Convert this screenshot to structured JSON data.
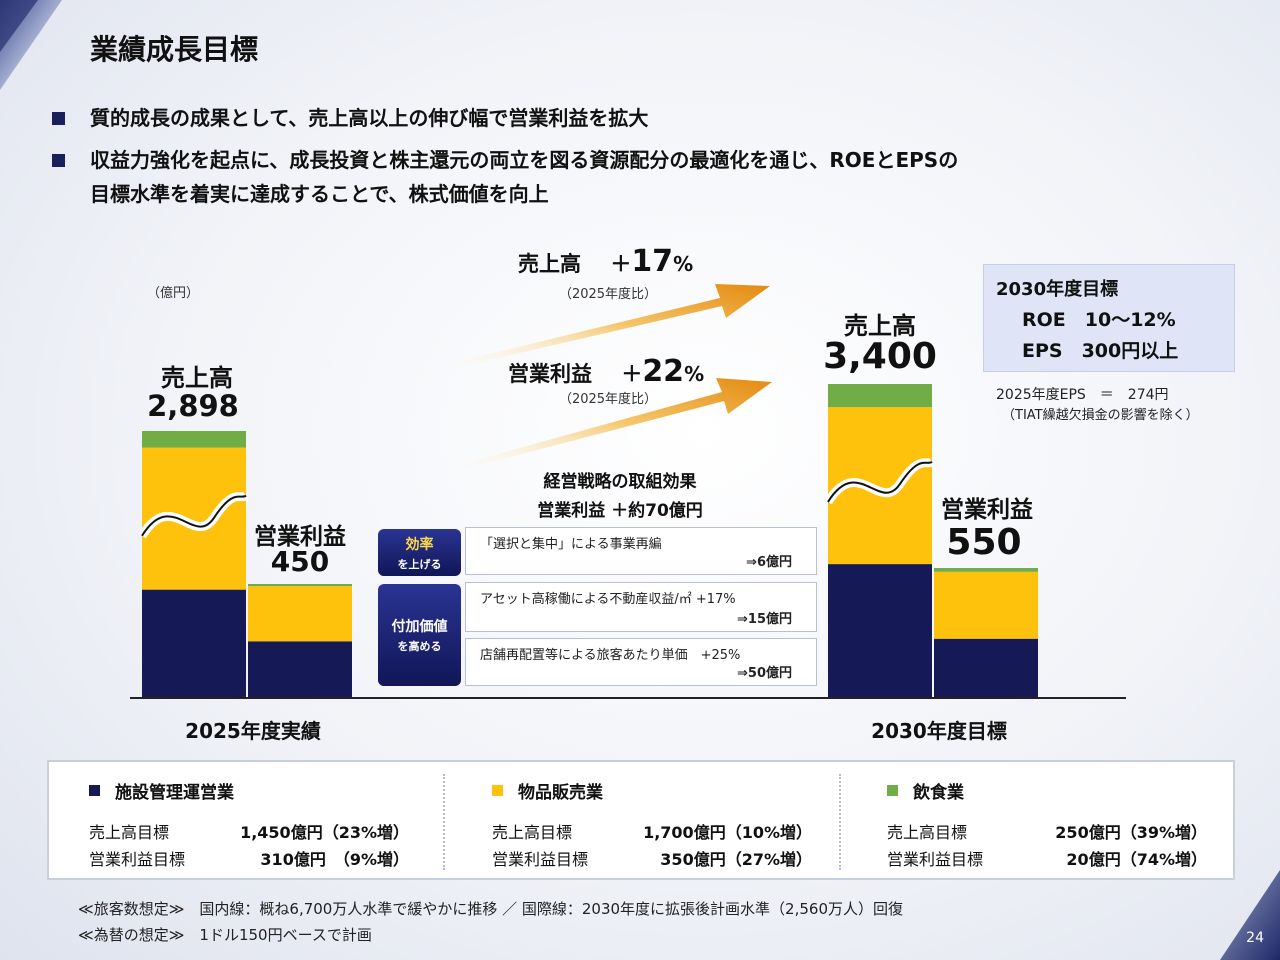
{
  "page": {
    "title": "業績成長目標",
    "bullets": [
      "質的成長の成果として、売上高以上の伸び幅で営業利益を拡大",
      "収益力強化を起点に、成長投資と株主還元の両立を図る資源配分の最適化を通じ、ROEとEPSの",
      "目標水準を着実に達成することで、株式価値を向上"
    ],
    "page_number": "24"
  },
  "chart_data": {
    "type": "bar",
    "stacked": true,
    "unit": "（億円）",
    "axis_break": true,
    "categories": [
      "2025年度実績",
      "2030年度目標"
    ],
    "bar_groups": [
      "売上高",
      "営業利益"
    ],
    "series": [
      {
        "name": "施設管理運営業",
        "color": "#151a56",
        "sales": [
          1179,
          1450
        ],
        "profit": [
          284,
          310
        ]
      },
      {
        "name": "物品販売業",
        "color": "#fec20d",
        "sales": [
          1546,
          1700
        ],
        "profit": [
          276,
          350
        ]
      },
      {
        "name": "飲食業",
        "color": "#70ad47",
        "sales": [
          180,
          250
        ],
        "profit": [
          11,
          20
        ]
      }
    ],
    "totals": {
      "sales_label": "売上高",
      "profit_label": "営業利益",
      "sales": [
        "2,898",
        "3,400"
      ],
      "profit": [
        "450",
        "550"
      ]
    },
    "growth": {
      "sales": {
        "label": "売上高",
        "sign": "＋",
        "value": "17",
        "pct": "%",
        "note": "（2025年度比）"
      },
      "profit": {
        "label": "営業利益",
        "sign": "＋",
        "value": "22",
        "pct": "%",
        "note": "（2025年度比）"
      }
    },
    "arrow_color": "#f0a21f"
  },
  "effects": {
    "title1": "経営戦略の取組効果",
    "title2": "営業利益 ＋約70億円",
    "tags": [
      {
        "l1": "効率",
        "l2": "を上げる"
      },
      {
        "l1": "付加価値",
        "l2": "を高める"
      }
    ],
    "items": [
      {
        "text": "「選択と集中」による事業再編",
        "effect": "⇒6億円"
      },
      {
        "text": "アセット高稼働による不動産収益/㎡ +17%",
        "effect": "⇒15億円"
      },
      {
        "text": "店舗再配置等による旅客あたり単価　+25%",
        "effect": "⇒50億円"
      }
    ]
  },
  "targets": {
    "title": "2030年度目標",
    "roe": "ROE　10～12%",
    "eps": "EPS　300円以上",
    "eps_note": "2025年度EPS　＝　274円",
    "eps_note2": "（TIAT繰越欠損金の影響を除く）"
  },
  "legend": [
    {
      "name": "施設管理運営業",
      "color": "#151a56",
      "sales_label": "売上高目標",
      "sales_value": "1,450億円（23%増）",
      "profit_label": "営業利益目標",
      "profit_value": "310億円　（9%増）"
    },
    {
      "name": "物品販売業",
      "color": "#fec20d",
      "sales_label": "売上高目標",
      "sales_value": "1,700億円（10%増）",
      "profit_label": "営業利益目標",
      "profit_value": "350億円（27%増）"
    },
    {
      "name": "飲食業",
      "color": "#70ad47",
      "sales_label": "売上高目標",
      "sales_value": "250億円（39%増）",
      "profit_label": "営業利益目標",
      "profit_value": "20億円（74%増）"
    }
  ],
  "footnotes": [
    "≪旅客数想定≫　国内線：概ね6,700万人水準で緩やかに推移 ／ 国際線：2030年度に拡張後計画水準（2,560万人）回復",
    "≪為替の想定≫　1ドル150円ベースで計画"
  ]
}
